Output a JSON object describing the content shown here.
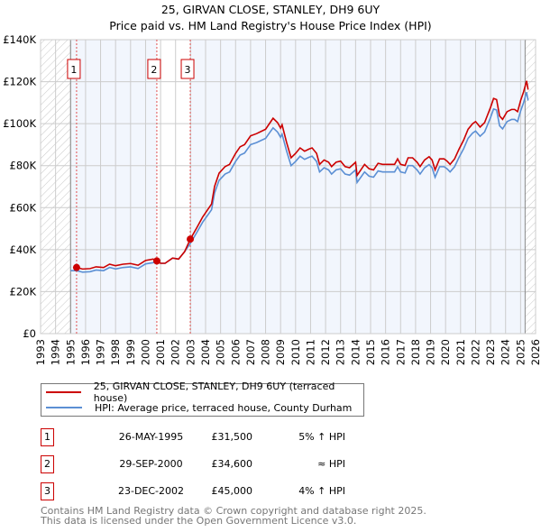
{
  "title_line1": "25, GIRVAN CLOSE, STANLEY, DH9 6UY",
  "title_line2": "Price paid vs. HM Land Registry's House Price Index (HPI)",
  "chart_data": {
    "type": "line",
    "xlim": [
      1993,
      2026
    ],
    "ylim": [
      0,
      140000
    ],
    "x_ticks": [
      "1993",
      "1994",
      "1995",
      "1996",
      "1997",
      "1998",
      "1999",
      "2000",
      "2001",
      "2002",
      "2003",
      "2004",
      "2005",
      "2006",
      "2007",
      "2008",
      "2009",
      "2010",
      "2011",
      "2012",
      "2013",
      "2014",
      "2015",
      "2016",
      "2017",
      "2018",
      "2019",
      "2020",
      "2021",
      "2022",
      "2023",
      "2024",
      "2025",
      "2026"
    ],
    "y_ticks": [
      {
        "v": 0,
        "label": "£0"
      },
      {
        "v": 20000,
        "label": "£20K"
      },
      {
        "v": 40000,
        "label": "£40K"
      },
      {
        "v": 60000,
        "label": "£60K"
      },
      {
        "v": 80000,
        "label": "£80K"
      },
      {
        "v": 100000,
        "label": "£100K"
      },
      {
        "v": 120000,
        "label": "£120K"
      },
      {
        "v": 140000,
        "label": "£140K"
      }
    ],
    "grid": true,
    "data_range": [
      1995,
      2025.3
    ],
    "hpi_series": {
      "name": "HPI: Average price, terraced house, County Durham",
      "color": "#5b8fd4",
      "x": [
        1995.0,
        1995.4,
        1995.8,
        1996.3,
        1996.7,
        1997.2,
        1997.6,
        1998.0,
        1998.5,
        1999.0,
        1999.5,
        2000.0,
        2000.5,
        2000.75,
        2001.0,
        2001.3,
        2001.8,
        2002.2,
        2002.6,
        2003.0,
        2003.4,
        2003.8,
        2004.2,
        2004.4,
        2004.6,
        2004.9,
        2005.3,
        2005.6,
        2006.0,
        2006.3,
        2006.6,
        2007.0,
        2007.4,
        2007.7,
        2008.0,
        2008.3,
        2008.5,
        2008.8,
        2009.0,
        2009.1,
        2009.4,
        2009.7,
        2010.0,
        2010.3,
        2010.6,
        2010.9,
        2011.1,
        2011.4,
        2011.6,
        2011.9,
        2012.2,
        2012.4,
        2012.7,
        2013.0,
        2013.3,
        2013.6,
        2014.0,
        2014.1,
        2014.4,
        2014.6,
        2014.9,
        2015.2,
        2015.5,
        2015.8,
        2016.2,
        2016.6,
        2016.8,
        2017.0,
        2017.3,
        2017.5,
        2017.8,
        2018.1,
        2018.3,
        2018.6,
        2018.9,
        2019.1,
        2019.3,
        2019.6,
        2019.9,
        2020.1,
        2020.3,
        2020.6,
        2020.9,
        2021.2,
        2021.5,
        2021.8,
        2022.0,
        2022.3,
        2022.6,
        2023.0,
        2023.2,
        2023.4,
        2023.6,
        2023.8,
        2024.1,
        2024.4,
        2024.6,
        2024.8,
        2025.0,
        2025.2,
        2025.4,
        2025.5
      ],
      "y": [
        30000,
        30000,
        29300,
        29500,
        30300,
        30000,
        31500,
        30800,
        31500,
        31800,
        31000,
        33200,
        33800,
        34600,
        33500,
        33500,
        36000,
        35500,
        39000,
        43200,
        48000,
        53000,
        57000,
        59000,
        67000,
        73000,
        76000,
        77000,
        82000,
        85000,
        86000,
        90000,
        91000,
        92000,
        93000,
        96000,
        98000,
        96000,
        93500,
        95000,
        87000,
        80000,
        82000,
        84500,
        83000,
        84000,
        84500,
        82000,
        77000,
        79000,
        78000,
        76000,
        78000,
        78500,
        76000,
        75500,
        78000,
        72000,
        75000,
        77000,
        75000,
        74500,
        77500,
        77000,
        77000,
        77000,
        79500,
        77000,
        76500,
        80000,
        80000,
        78000,
        76000,
        79000,
        80500,
        79000,
        74500,
        79500,
        79500,
        78500,
        77000,
        79500,
        84000,
        88000,
        93000,
        95500,
        96500,
        94000,
        96000,
        103000,
        107000,
        106500,
        99000,
        97500,
        101000,
        102000,
        102000,
        101000,
        106000,
        110000,
        115000,
        111000
      ]
    },
    "property_series": {
      "name": "25, GIRVAN CLOSE, STANLEY, DH9 6UY (terraced house)",
      "color": "#cc0000",
      "method": "last sale price indexed by HPI"
    },
    "sales": [
      {
        "n": "1",
        "x": 1995.4,
        "price": 31500,
        "date": "26-MAY-1995",
        "price_label": "£31,500",
        "hpi": "5% ↑ HPI"
      },
      {
        "n": "2",
        "x": 2000.75,
        "price": 34600,
        "date": "29-SEP-2000",
        "price_label": "£34,600",
        "hpi": "≈ HPI"
      },
      {
        "n": "3",
        "x": 2002.98,
        "price": 45000,
        "date": "23-DEC-2002",
        "price_label": "£45,000",
        "hpi": "4% ↑ HPI"
      }
    ],
    "legend": "bottom"
  },
  "legend": {
    "property": "25, GIRVAN CLOSE, STANLEY, DH9 6UY (terraced house)",
    "hpi": "HPI: Average price, terraced house, County Durham"
  },
  "footer": {
    "line1": "Contains HM Land Registry data © Crown copyright and database right 2025.",
    "line2": "This data is licensed under the Open Government Licence v3.0."
  }
}
